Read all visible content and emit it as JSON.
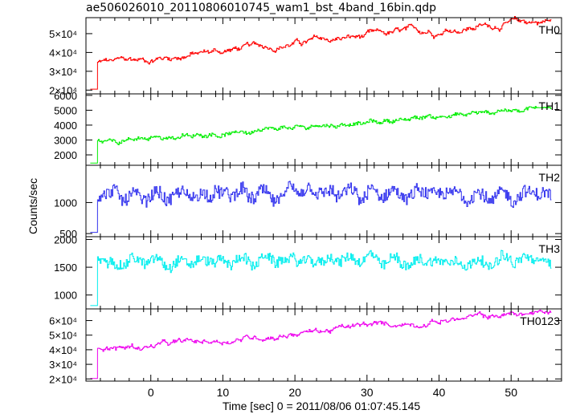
{
  "title": "ae506026010_20110806010745_wam1_bst_4band_16bin.qdp",
  "ylabel": "Counts/sec",
  "xlabel": "Time [sec] 0 = 2011/08/06 01:07:45.145",
  "chart_data": [
    {
      "type": "line",
      "label": "TH0",
      "color": "#ff0000",
      "xlim": [
        -9,
        57
      ],
      "ylim": [
        18000,
        58500
      ],
      "x_ticks": [
        0,
        10,
        20,
        30,
        40,
        50
      ],
      "y_ticks": [
        {
          "value": 20000,
          "label": "2×10⁴"
        },
        {
          "value": 30000,
          "label": "3×10⁴"
        },
        {
          "value": 40000,
          "label": "4×10⁴"
        },
        {
          "value": 50000,
          "label": "5×10⁴"
        }
      ],
      "pre_level": 20500,
      "x": [
        -7.4,
        0,
        10,
        20,
        30,
        40,
        50,
        55.5
      ],
      "y": [
        34500,
        36500,
        41000,
        45000,
        48500,
        52000,
        55500,
        57000
      ],
      "noise": 700,
      "period": 0.3
    },
    {
      "type": "line",
      "label": "TH1",
      "color": "#00ee00",
      "xlim": [
        -9,
        57
      ],
      "ylim": [
        1300,
        6100
      ],
      "x_ticks": [
        0,
        10,
        20,
        30,
        40,
        50
      ],
      "y_ticks": [
        {
          "value": 2000,
          "label": "2000"
        },
        {
          "value": 3000,
          "label": "3000"
        },
        {
          "value": 4000,
          "label": "4000"
        },
        {
          "value": 5000,
          "label": "5000"
        },
        {
          "value": 6000,
          "label": "6000"
        }
      ],
      "pre_level": 1450,
      "x": [
        -7.4,
        0,
        10,
        20,
        30,
        40,
        50,
        55.5
      ],
      "y": [
        2900,
        3100,
        3400,
        3800,
        4150,
        4600,
        5000,
        5300
      ],
      "noise": 170,
      "period": 2.0
    },
    {
      "type": "line",
      "label": "TH2",
      "color": "#3333ee",
      "xlim": [
        -9,
        57
      ],
      "ylim": [
        450,
        1600
      ],
      "x_ticks": [
        0,
        10,
        20,
        30,
        40,
        50
      ],
      "y_ticks": [
        {
          "value": 500,
          "label": "500"
        },
        {
          "value": 1000,
          "label": "1000"
        }
      ],
      "pre_level": 520,
      "x": [
        -7.4,
        55.5
      ],
      "y": [
        1120,
        1120
      ],
      "noise": 170,
      "period": 3.0
    },
    {
      "type": "line",
      "label": "TH3",
      "color": "#00eeee",
      "xlim": [
        -9,
        57
      ],
      "ylim": [
        750,
        2050
      ],
      "x_ticks": [
        0,
        10,
        20,
        30,
        40,
        50
      ],
      "y_ticks": [
        {
          "value": 1000,
          "label": "1000"
        },
        {
          "value": 1500,
          "label": "1500"
        },
        {
          "value": 2000,
          "label": "2000"
        }
      ],
      "pre_level": 810,
      "x": [
        -7.4,
        55.5
      ],
      "y": [
        1620,
        1620
      ],
      "noise": 150,
      "period": 3.0
    },
    {
      "type": "line",
      "label": "TH0123",
      "color": "#ee00ee",
      "xlim": [
        -9,
        57
      ],
      "ylim": [
        18500,
        68000
      ],
      "x_ticks": [
        0,
        10,
        20,
        30,
        40,
        50
      ],
      "y_ticks": [
        {
          "value": 20000,
          "label": "2×10⁴"
        },
        {
          "value": 30000,
          "label": "3×10⁴"
        },
        {
          "value": 40000,
          "label": "4×10⁴"
        },
        {
          "value": 50000,
          "label": "5×10⁴"
        },
        {
          "value": 60000,
          "label": "6×10⁴"
        }
      ],
      "pre_level": 20300,
      "x": [
        -7.4,
        0,
        10,
        20,
        30,
        40,
        50,
        55.5
      ],
      "y": [
        40000,
        42500,
        46500,
        51500,
        56000,
        60000,
        64000,
        65500
      ],
      "noise": 800,
      "period": 0.3
    }
  ]
}
